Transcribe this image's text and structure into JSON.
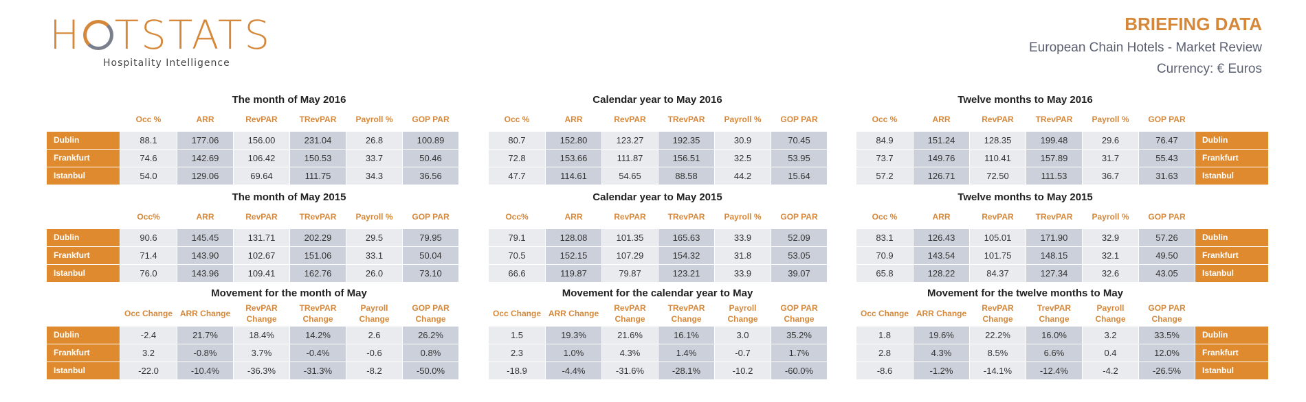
{
  "logo": {
    "text_pre": "H",
    "text_post": "TSTATS",
    "tagline": "Hospitality Intelligence"
  },
  "header": {
    "title": "BRIEFING DATA",
    "subtitle": "European Chain Hotels - Market Review",
    "currency": "Currency: € Euros"
  },
  "colors": {
    "accent": "#e08a2f",
    "cell_light": "#e9ebee",
    "cell_dark": "#cbd0da"
  },
  "cities": [
    "Dublin",
    "Frankfurt",
    "Istanbul"
  ],
  "blocks": [
    {
      "title": "The month of May 2016",
      "columns": [
        "Occ %",
        "ARR",
        "RevPAR",
        "TRevPAR",
        "Payroll %",
        "GOP PAR"
      ],
      "rows": [
        [
          "88.1",
          "177.06",
          "156.00",
          "231.04",
          "26.8",
          "100.89"
        ],
        [
          "74.6",
          "142.69",
          "106.42",
          "150.53",
          "33.7",
          "50.46"
        ],
        [
          "54.0",
          "129.06",
          "69.64",
          "111.75",
          "34.3",
          "36.56"
        ]
      ]
    },
    {
      "title": "Calendar year to May 2016",
      "columns": [
        "Occ %",
        "ARR",
        "RevPAR",
        "TRevPAR",
        "Payroll %",
        "GOP PAR"
      ],
      "rows": [
        [
          "80.7",
          "152.80",
          "123.27",
          "192.35",
          "30.9",
          "70.45"
        ],
        [
          "72.8",
          "153.66",
          "111.87",
          "156.51",
          "32.5",
          "53.95"
        ],
        [
          "47.7",
          "114.61",
          "54.65",
          "88.58",
          "44.2",
          "15.64"
        ]
      ]
    },
    {
      "title": "Twelve months to May 2016",
      "columns": [
        "Occ %",
        "ARR",
        "RevPAR",
        "TRevPAR",
        "Payroll %",
        "GOP PAR"
      ],
      "rows": [
        [
          "84.9",
          "151.24",
          "128.35",
          "199.48",
          "29.6",
          "76.47"
        ],
        [
          "73.7",
          "149.76",
          "110.41",
          "157.89",
          "31.7",
          "55.43"
        ],
        [
          "57.2",
          "126.71",
          "72.50",
          "111.53",
          "36.7",
          "31.63"
        ]
      ]
    },
    {
      "title": "The month of May 2015",
      "columns": [
        "Occ%",
        "ARR",
        "RevPAR",
        "TRevPAR",
        "Payroll %",
        "GOP PAR"
      ],
      "rows": [
        [
          "90.6",
          "145.45",
          "131.71",
          "202.29",
          "29.5",
          "79.95"
        ],
        [
          "71.4",
          "143.90",
          "102.67",
          "151.06",
          "33.1",
          "50.04"
        ],
        [
          "76.0",
          "143.96",
          "109.41",
          "162.76",
          "26.0",
          "73.10"
        ]
      ]
    },
    {
      "title": "Calendar year to May 2015",
      "columns": [
        "Occ%",
        "ARR",
        "RevPAR",
        "TRevPAR",
        "Payroll %",
        "GOP PAR"
      ],
      "rows": [
        [
          "79.1",
          "128.08",
          "101.35",
          "165.63",
          "33.9",
          "52.09"
        ],
        [
          "70.5",
          "152.15",
          "107.29",
          "154.32",
          "31.8",
          "53.05"
        ],
        [
          "66.6",
          "119.87",
          "79.87",
          "123.21",
          "33.9",
          "39.07"
        ]
      ]
    },
    {
      "title": "Twelve months to May 2015",
      "columns": [
        "Occ %",
        "ARR",
        "RevPAR",
        "TRevPAR",
        "Payroll %",
        "GOP PAR"
      ],
      "rows": [
        [
          "83.1",
          "126.43",
          "105.01",
          "171.90",
          "32.9",
          "57.26"
        ],
        [
          "70.9",
          "143.54",
          "101.75",
          "148.15",
          "32.1",
          "49.50"
        ],
        [
          "65.8",
          "128.22",
          "84.37",
          "127.34",
          "32.6",
          "43.05"
        ]
      ]
    },
    {
      "title": "Movement for the month of May",
      "columns": [
        "Occ Change",
        "ARR Change",
        "RevPAR Change",
        "TRevPAR Change",
        "Payroll Change",
        "GOP PAR Change"
      ],
      "rows": [
        [
          "-2.4",
          "21.7%",
          "18.4%",
          "14.2%",
          "2.6",
          "26.2%"
        ],
        [
          "3.2",
          "-0.8%",
          "3.7%",
          "-0.4%",
          "-0.6",
          "0.8%"
        ],
        [
          "-22.0",
          "-10.4%",
          "-36.3%",
          "-31.3%",
          "-8.2",
          "-50.0%"
        ]
      ]
    },
    {
      "title": "Movement for the calendar year to May",
      "columns": [
        "Occ Change",
        "ARR Change",
        "RevPAR Change",
        "TRevPAR Change",
        "Payroll Change",
        "GOP PAR Change"
      ],
      "rows": [
        [
          "1.5",
          "19.3%",
          "21.6%",
          "16.1%",
          "3.0",
          "35.2%"
        ],
        [
          "2.3",
          "1.0%",
          "4.3%",
          "1.4%",
          "-0.7",
          "1.7%"
        ],
        [
          "-18.9",
          "-4.4%",
          "-31.6%",
          "-28.1%",
          "-10.2",
          "-60.0%"
        ]
      ]
    },
    {
      "title": "Movement for the twelve months to May",
      "columns": [
        "Occ Change",
        "ARR Change",
        "RevPAR Change",
        "TrevPAR Change",
        "Payroll Change",
        "GOP PAR Change"
      ],
      "rows": [
        [
          "1.8",
          "19.6%",
          "22.2%",
          "16.0%",
          "3.2",
          "33.5%"
        ],
        [
          "2.8",
          "4.3%",
          "8.5%",
          "6.6%",
          "0.4",
          "12.0%"
        ],
        [
          "-8.6",
          "-1.2%",
          "-14.1%",
          "-12.4%",
          "-4.2",
          "-26.5%"
        ]
      ]
    }
  ]
}
